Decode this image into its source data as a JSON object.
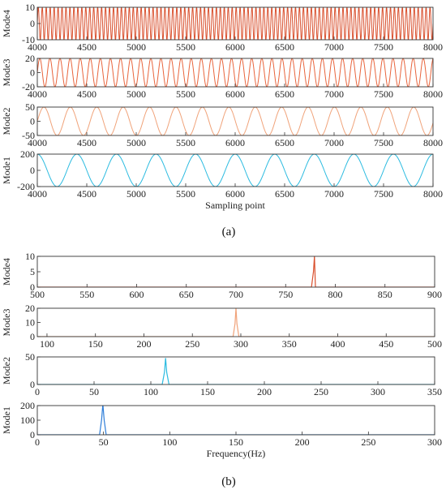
{
  "figure": {
    "caption_a": "(a)",
    "caption_b": "(b)"
  },
  "chart_data": [
    {
      "type": "line",
      "panel": "a",
      "ylabel": "Mode4",
      "xlim": [
        4000,
        8000
      ],
      "ylim": [
        -10,
        10
      ],
      "yticks": [
        -10,
        0,
        10
      ],
      "xticks": [
        4000,
        4500,
        5000,
        5500,
        6000,
        6500,
        7000,
        7500,
        8000
      ],
      "signal": {
        "kind": "sine",
        "amplitude": 10,
        "period": 40,
        "phase_at_xmin": 0
      },
      "color": "#d9502e"
    },
    {
      "type": "line",
      "panel": "a",
      "ylabel": "Mode3",
      "xlim": [
        4000,
        8000
      ],
      "ylim": [
        -20,
        20
      ],
      "yticks": [
        -20,
        0,
        20
      ],
      "xticks": [
        4000,
        4500,
        5000,
        5500,
        6000,
        6500,
        7000,
        7500,
        8000
      ],
      "signal": {
        "kind": "sine",
        "amplitude": 20,
        "period": 102,
        "phase_at_xmin": 0
      },
      "color": "#e8643c"
    },
    {
      "type": "line",
      "panel": "a",
      "ylabel": "Mode2",
      "xlim": [
        4000,
        8000
      ],
      "ylim": [
        -50,
        50
      ],
      "yticks": [
        -50,
        0,
        50
      ],
      "xticks": [
        4000,
        4500,
        5000,
        5500,
        6000,
        6500,
        7000,
        7500,
        8000
      ],
      "signal": {
        "kind": "sine",
        "amplitude": 50,
        "period": 267,
        "phase_at_xmin": 0
      },
      "color": "#f0a37a"
    },
    {
      "type": "line",
      "panel": "a",
      "ylabel": "Mode1",
      "xlabel": "Sampling point",
      "xlim": [
        4000,
        8000
      ],
      "ylim": [
        -200,
        200
      ],
      "yticks": [
        -200,
        0,
        200
      ],
      "xticks": [
        4000,
        4500,
        5000,
        5500,
        6000,
        6500,
        7000,
        7500,
        8000
      ],
      "signal": {
        "kind": "sine",
        "amplitude": 200,
        "period": 400,
        "phase_at_xmin": 0.25
      },
      "color": "#2bbbe0"
    },
    {
      "type": "line",
      "panel": "b",
      "ylabel": "Mode4",
      "xlim": [
        500,
        900
      ],
      "ylim": [
        0,
        10
      ],
      "yticks": [
        0,
        5,
        10
      ],
      "xticks": [
        500,
        550,
        600,
        650,
        700,
        750,
        800,
        850,
        900
      ],
      "x": [
        500,
        776,
        778,
        779,
        780,
        900
      ],
      "y": [
        0,
        0,
        5,
        10,
        0,
        0
      ],
      "color": "#d9502e"
    },
    {
      "type": "line",
      "panel": "b",
      "ylabel": "Mode3",
      "xlim": [
        90,
        500
      ],
      "ylim": [
        0,
        20
      ],
      "yticks": [
        0,
        10,
        20
      ],
      "xticks": [
        100,
        150,
        200,
        250,
        300,
        350,
        400,
        450,
        500
      ],
      "x": [
        90,
        292,
        294,
        295,
        296,
        298,
        500
      ],
      "y": [
        0,
        0,
        9,
        20,
        9,
        0,
        0
      ],
      "color": "#f0a37a"
    },
    {
      "type": "line",
      "panel": "b",
      "ylabel": "Mode2",
      "xlim": [
        0,
        350
      ],
      "ylim": [
        0,
        50
      ],
      "yticks": [
        0,
        50
      ],
      "xticks": [
        0,
        50,
        100,
        150,
        200,
        250,
        300,
        350
      ],
      "x": [
        0,
        110,
        112,
        113,
        114,
        116,
        350
      ],
      "y": [
        0,
        0,
        22,
        48,
        22,
        0,
        0
      ],
      "color": "#2bbbe0"
    },
    {
      "type": "line",
      "panel": "b",
      "ylabel": "Mode1",
      "xlabel": "Frequency(Hz)",
      "xlim": [
        0,
        300
      ],
      "ylim": [
        0,
        200
      ],
      "yticks": [
        0,
        100,
        200
      ],
      "xticks": [
        0,
        50,
        100,
        150,
        200,
        250,
        300
      ],
      "x": [
        0,
        47,
        48.5,
        49.5,
        50.5,
        52,
        300
      ],
      "y": [
        0,
        0,
        100,
        210,
        100,
        0,
        0
      ],
      "color": "#2f7ed8"
    }
  ]
}
